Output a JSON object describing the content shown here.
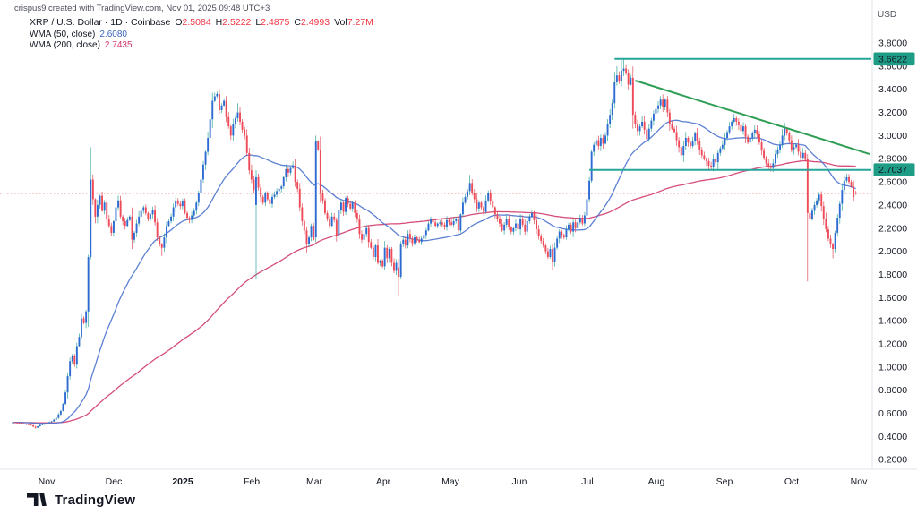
{
  "attribution": "crispus9 created with TradingView.com, Nov 01, 2025 09:48 UTC+3",
  "legend": {
    "symbol_title": "XRP / U.S. Dollar · 1D · Coinbase",
    "ohlc": [
      {
        "label": "O",
        "value": "2.5084"
      },
      {
        "label": "H",
        "value": "2.5222"
      },
      {
        "label": "L",
        "value": "2.4875"
      },
      {
        "label": "C",
        "value": "2.4993"
      },
      {
        "label": "Vol",
        "value": "7.27M"
      }
    ],
    "wma50_label": "WMA (50, close)",
    "wma50_value": "2.6080",
    "wma200_label": "WMA (200, close)",
    "wma200_value": "2.7435"
  },
  "price_scale": {
    "currency_label": "USD"
  },
  "footer": {
    "brand": "TradingView"
  },
  "colors": {
    "up_body": "#2d6bd2",
    "up_wick": "#2fa599",
    "down_body": "#ef4a57",
    "down_wick": "#de4656",
    "wma50": "#4a72cf",
    "wma200": "#d03a6a",
    "level_line": "#26a69a",
    "trend_line": "#2e9e55",
    "badge_bg": "#1f9c86",
    "badge_text": "#ffffff",
    "last_price": "#e05252",
    "ohlc_value": "#f23645",
    "text_dark": "#131722",
    "text_gray": "#50535e",
    "axis_border": "#e0e3eb"
  },
  "chart_data": {
    "type": "candlestick",
    "symbol": "XRP/USD",
    "interval": "1D",
    "exchange": "Coinbase",
    "title": "XRP / U.S. Dollar · 1D · Coinbase",
    "ylim": [
      0.2,
      3.8
    ],
    "tick_step": 0.2,
    "x_months": [
      "Nov",
      "Dec",
      "2025",
      "Feb",
      "Mar",
      "Apr",
      "May",
      "Jun",
      "Jul",
      "Aug",
      "Sep",
      "Oct",
      "Nov"
    ],
    "bold_month": "2025",
    "start_date": "2024-10-29",
    "indicators": [
      {
        "name": "WMA 50",
        "period": 50,
        "last": 2.608
      },
      {
        "name": "WMA 200",
        "period": 200,
        "last": 2.7435
      }
    ],
    "drawings": {
      "horizontal_levels": [
        {
          "price": 3.6622,
          "label": "3.6622",
          "from_day": 262
        },
        {
          "price": 2.7037,
          "label": "2.7037",
          "from_day": 251
        }
      ],
      "trendline": {
        "from_day": 271,
        "from_price": 3.475,
        "to_day": 373,
        "to_price": 2.84
      },
      "last_price": 2.4993
    },
    "anchors": [
      [
        0,
        0.52
      ],
      [
        3,
        0.515
      ],
      [
        6,
        0.505
      ],
      [
        8,
        0.495
      ],
      [
        10,
        0.475
      ],
      [
        12,
        0.5
      ],
      [
        14,
        0.51
      ],
      [
        17,
        0.53
      ],
      [
        19,
        0.56
      ],
      [
        21,
        0.62
      ],
      [
        22,
        0.68
      ],
      [
        23,
        0.78
      ],
      [
        24,
        0.92
      ],
      [
        25,
        1.05
      ],
      [
        26,
        1.1
      ],
      [
        27,
        1.02
      ],
      [
        28,
        1.18
      ],
      [
        29,
        1.26
      ],
      [
        30,
        1.42
      ],
      [
        31,
        1.38
      ],
      [
        32,
        1.48
      ],
      [
        33,
        1.95
      ],
      [
        34,
        2.62
      ],
      [
        35,
        2.45
      ],
      [
        36,
        2.3
      ],
      [
        37,
        2.4
      ],
      [
        38,
        2.48
      ],
      [
        39,
        2.35
      ],
      [
        40,
        2.42
      ],
      [
        41,
        2.28
      ],
      [
        42,
        2.22
      ],
      [
        43,
        2.16
      ],
      [
        44,
        2.26
      ],
      [
        45,
        2.38
      ],
      [
        46,
        2.44
      ],
      [
        47,
        2.3
      ],
      [
        48,
        2.26
      ],
      [
        49,
        2.22
      ],
      [
        50,
        2.27
      ],
      [
        51,
        2.3
      ],
      [
        52,
        2.1
      ],
      [
        53,
        2.16
      ],
      [
        54,
        2.24
      ],
      [
        55,
        2.3
      ],
      [
        56,
        2.35
      ],
      [
        57,
        2.38
      ],
      [
        58,
        2.33
      ],
      [
        59,
        2.28
      ],
      [
        60,
        2.32
      ],
      [
        61,
        2.36
      ],
      [
        62,
        2.25
      ],
      [
        63,
        2.12
      ],
      [
        64,
        2.06
      ],
      [
        65,
        2.03
      ],
      [
        66,
        2.12
      ],
      [
        67,
        2.22
      ],
      [
        68,
        2.26
      ],
      [
        69,
        2.3
      ],
      [
        70,
        2.38
      ],
      [
        71,
        2.44
      ],
      [
        72,
        2.41
      ],
      [
        73,
        2.39
      ],
      [
        74,
        2.43
      ],
      [
        75,
        2.33
      ],
      [
        76,
        2.29
      ],
      [
        77,
        2.27
      ],
      [
        78,
        2.31
      ],
      [
        79,
        2.35
      ],
      [
        80,
        2.42
      ],
      [
        81,
        2.5
      ],
      [
        82,
        2.62
      ],
      [
        83,
        2.75
      ],
      [
        84,
        2.86
      ],
      [
        85,
        2.98
      ],
      [
        86,
        3.14
      ],
      [
        87,
        3.3
      ],
      [
        88,
        3.34
      ],
      [
        89,
        3.36
      ],
      [
        90,
        3.22
      ],
      [
        91,
        3.26
      ],
      [
        92,
        3.3
      ],
      [
        93,
        3.16
      ],
      [
        94,
        3.08
      ],
      [
        95,
        3.0
      ],
      [
        96,
        3.1
      ],
      [
        97,
        3.15
      ],
      [
        98,
        3.2
      ],
      [
        99,
        3.12
      ],
      [
        100,
        3.05
      ],
      [
        101,
        3.0
      ],
      [
        102,
        2.85
      ],
      [
        103,
        2.7
      ],
      [
        104,
        2.62
      ],
      [
        105,
        2.53
      ],
      [
        106,
        2.64
      ],
      [
        107,
        2.55
      ],
      [
        108,
        2.47
      ],
      [
        109,
        2.42
      ],
      [
        110,
        2.5
      ],
      [
        111,
        2.45
      ],
      [
        112,
        2.41
      ],
      [
        113,
        2.47
      ],
      [
        114,
        2.49
      ],
      [
        115,
        2.52
      ],
      [
        116,
        2.54
      ],
      [
        117,
        2.56
      ],
      [
        118,
        2.64
      ],
      [
        119,
        2.71
      ],
      [
        120,
        2.68
      ],
      [
        121,
        2.72
      ],
      [
        122,
        2.74
      ],
      [
        123,
        2.6
      ],
      [
        124,
        2.54
      ],
      [
        125,
        2.38
      ],
      [
        126,
        2.26
      ],
      [
        127,
        2.18
      ],
      [
        128,
        2.06
      ],
      [
        129,
        2.12
      ],
      [
        130,
        2.22
      ],
      [
        131,
        2.1
      ],
      [
        132,
        2.95
      ],
      [
        133,
        2.88
      ],
      [
        134,
        2.5
      ],
      [
        135,
        2.44
      ],
      [
        136,
        2.33
      ],
      [
        137,
        2.28
      ],
      [
        138,
        2.22
      ],
      [
        139,
        2.3
      ],
      [
        140,
        2.27
      ],
      [
        141,
        2.14
      ],
      [
        142,
        2.36
      ],
      [
        143,
        2.42
      ],
      [
        144,
        2.34
      ],
      [
        145,
        2.46
      ],
      [
        146,
        2.41
      ],
      [
        147,
        2.37
      ],
      [
        148,
        2.42
      ],
      [
        149,
        2.33
      ],
      [
        150,
        2.28
      ],
      [
        151,
        2.15
      ],
      [
        152,
        2.1
      ],
      [
        153,
        2.15
      ],
      [
        154,
        2.2
      ],
      [
        155,
        2.08
      ],
      [
        156,
        2.03
      ],
      [
        157,
        1.95
      ],
      [
        158,
        2.05
      ],
      [
        159,
        1.9
      ],
      [
        160,
        1.92
      ],
      [
        161,
        1.87
      ],
      [
        162,
        2.03
      ],
      [
        163,
        1.94
      ],
      [
        164,
        2.02
      ],
      [
        165,
        1.9
      ],
      [
        166,
        1.83
      ],
      [
        167,
        1.9
      ],
      [
        168,
        1.78
      ],
      [
        169,
        2.06
      ],
      [
        170,
        2.1
      ],
      [
        171,
        2.05
      ],
      [
        172,
        2.15
      ],
      [
        173,
        2.11
      ],
      [
        174,
        2.07
      ],
      [
        175,
        2.12
      ],
      [
        176,
        2.1
      ],
      [
        177,
        2.08
      ],
      [
        178,
        2.11
      ],
      [
        179,
        2.14
      ],
      [
        180,
        2.18
      ],
      [
        181,
        2.24
      ],
      [
        182,
        2.28
      ],
      [
        183,
        2.25
      ],
      [
        184,
        2.22
      ],
      [
        185,
        2.24
      ],
      [
        186,
        2.25
      ],
      [
        187,
        2.23
      ],
      [
        188,
        2.21
      ],
      [
        189,
        2.27
      ],
      [
        190,
        2.25
      ],
      [
        191,
        2.23
      ],
      [
        192,
        2.26
      ],
      [
        193,
        2.28
      ],
      [
        194,
        2.18
      ],
      [
        195,
        2.32
      ],
      [
        196,
        2.42
      ],
      [
        197,
        2.47
      ],
      [
        198,
        2.52
      ],
      [
        199,
        2.59
      ],
      [
        200,
        2.5
      ],
      [
        201,
        2.45
      ],
      [
        202,
        2.37
      ],
      [
        203,
        2.42
      ],
      [
        204,
        2.38
      ],
      [
        205,
        2.34
      ],
      [
        206,
        2.44
      ],
      [
        207,
        2.5
      ],
      [
        208,
        2.43
      ],
      [
        209,
        2.38
      ],
      [
        210,
        2.32
      ],
      [
        211,
        2.28
      ],
      [
        212,
        2.24
      ],
      [
        213,
        2.18
      ],
      [
        214,
        2.23
      ],
      [
        215,
        2.28
      ],
      [
        216,
        2.21
      ],
      [
        217,
        2.17
      ],
      [
        218,
        2.2
      ],
      [
        219,
        2.24
      ],
      [
        220,
        2.19
      ],
      [
        221,
        2.28
      ],
      [
        222,
        2.23
      ],
      [
        223,
        2.17
      ],
      [
        224,
        2.26
      ],
      [
        225,
        2.3
      ],
      [
        226,
        2.33
      ],
      [
        227,
        2.27
      ],
      [
        228,
        2.19
      ],
      [
        229,
        2.13
      ],
      [
        230,
        2.09
      ],
      [
        231,
        2.05
      ],
      [
        232,
        2.0
      ],
      [
        233,
        1.95
      ],
      [
        234,
        2.02
      ],
      [
        235,
        1.91
      ],
      [
        236,
        2.03
      ],
      [
        237,
        2.11
      ],
      [
        238,
        2.17
      ],
      [
        239,
        2.14
      ],
      [
        240,
        2.12
      ],
      [
        241,
        2.19
      ],
      [
        242,
        2.23
      ],
      [
        243,
        2.17
      ],
      [
        244,
        2.25
      ],
      [
        245,
        2.2
      ],
      [
        246,
        2.25
      ],
      [
        247,
        2.29
      ],
      [
        248,
        2.24
      ],
      [
        249,
        2.31
      ],
      [
        250,
        2.45
      ],
      [
        251,
        2.61
      ],
      [
        252,
        2.86
      ],
      [
        253,
        2.92
      ],
      [
        254,
        2.96
      ],
      [
        255,
        2.91
      ],
      [
        256,
        2.98
      ],
      [
        257,
        2.93
      ],
      [
        258,
        3.0
      ],
      [
        259,
        3.1
      ],
      [
        260,
        3.18
      ],
      [
        261,
        3.28
      ],
      [
        262,
        3.46
      ],
      [
        263,
        3.52
      ],
      [
        264,
        3.47
      ],
      [
        265,
        3.56
      ],
      [
        266,
        3.58
      ],
      [
        267,
        3.54
      ],
      [
        268,
        3.44
      ],
      [
        269,
        3.5
      ],
      [
        270,
        3.18
      ],
      [
        271,
        3.1
      ],
      [
        272,
        3.04
      ],
      [
        273,
        3.08
      ],
      [
        274,
        3.12
      ],
      [
        275,
        3.05
      ],
      [
        276,
        2.97
      ],
      [
        277,
        3.06
      ],
      [
        278,
        3.13
      ],
      [
        279,
        3.19
      ],
      [
        280,
        3.23
      ],
      [
        281,
        3.26
      ],
      [
        282,
        3.31
      ],
      [
        283,
        3.25
      ],
      [
        284,
        3.31
      ],
      [
        285,
        3.2
      ],
      [
        286,
        3.1
      ],
      [
        287,
        3.06
      ],
      [
        288,
        3.03
      ],
      [
        289,
        2.96
      ],
      [
        290,
        2.9
      ],
      [
        291,
        2.83
      ],
      [
        292,
        2.91
      ],
      [
        293,
        2.98
      ],
      [
        294,
        2.94
      ],
      [
        295,
        2.91
      ],
      [
        296,
        2.95
      ],
      [
        297,
        3.02
      ],
      [
        298,
        2.95
      ],
      [
        299,
        2.88
      ],
      [
        300,
        2.83
      ],
      [
        301,
        2.8
      ],
      [
        302,
        2.78
      ],
      [
        303,
        2.74
      ],
      [
        304,
        2.73
      ],
      [
        305,
        2.8
      ],
      [
        306,
        2.77
      ],
      [
        307,
        2.85
      ],
      [
        308,
        2.89
      ],
      [
        309,
        2.92
      ],
      [
        310,
        2.98
      ],
      [
        311,
        3.03
      ],
      [
        312,
        3.08
      ],
      [
        313,
        3.12
      ],
      [
        314,
        3.15
      ],
      [
        315,
        3.12
      ],
      [
        316,
        3.09
      ],
      [
        317,
        3.04
      ],
      [
        318,
        3.08
      ],
      [
        319,
        2.99
      ],
      [
        320,
        2.94
      ],
      [
        321,
        2.98
      ],
      [
        322,
        3.02
      ],
      [
        323,
        3.05
      ],
      [
        324,
        3.01
      ],
      [
        325,
        2.94
      ],
      [
        326,
        2.87
      ],
      [
        327,
        2.81
      ],
      [
        328,
        2.76
      ],
      [
        329,
        2.73
      ],
      [
        330,
        2.72
      ],
      [
        331,
        2.76
      ],
      [
        332,
        2.84
      ],
      [
        333,
        2.88
      ],
      [
        334,
        2.92
      ],
      [
        335,
        3.0
      ],
      [
        336,
        3.06
      ],
      [
        337,
        3.02
      ],
      [
        338,
        2.96
      ],
      [
        339,
        2.88
      ],
      [
        340,
        2.9
      ],
      [
        341,
        2.92
      ],
      [
        342,
        2.86
      ],
      [
        343,
        2.81
      ],
      [
        344,
        2.85
      ],
      [
        345,
        2.8
      ],
      [
        346,
        2.33
      ],
      [
        347,
        2.28
      ],
      [
        348,
        2.35
      ],
      [
        349,
        2.4
      ],
      [
        350,
        2.44
      ],
      [
        351,
        2.49
      ],
      [
        352,
        2.39
      ],
      [
        353,
        2.28
      ],
      [
        354,
        2.19
      ],
      [
        355,
        2.11
      ],
      [
        356,
        2.06
      ],
      [
        357,
        2.02
      ],
      [
        358,
        2.16
      ],
      [
        359,
        2.29
      ],
      [
        360,
        2.41
      ],
      [
        361,
        2.53
      ],
      [
        362,
        2.61
      ],
      [
        363,
        2.64
      ],
      [
        364,
        2.6
      ],
      [
        365,
        2.56
      ],
      [
        366,
        2.47
      ],
      [
        367,
        2.5
      ]
    ],
    "overrides": {
      "34": {
        "h": 2.9,
        "l": 1.93
      },
      "45": {
        "h": 2.87
      },
      "52": {
        "l": 2.02
      },
      "65": {
        "l": 1.96
      },
      "98": {
        "h": 3.28
      },
      "106": {
        "o": 2.4,
        "h": 2.7,
        "l": 1.76
      },
      "128": {
        "l": 1.99
      },
      "132": {
        "o": 2.12,
        "h": 3.0,
        "l": 2.08
      },
      "134": {
        "l": 2.42
      },
      "168": {
        "o": 1.86,
        "l": 1.61
      },
      "199": {
        "h": 2.66
      },
      "235": {
        "l": 1.84
      },
      "263": {
        "h": 3.6
      },
      "265": {
        "h": 3.65
      },
      "266": {
        "h": 3.663
      },
      "270": {
        "l": 3.06
      },
      "330": {
        "l": 2.69
      },
      "336": {
        "h": 3.11
      },
      "346": {
        "h": 2.84,
        "l": 1.74
      },
      "357": {
        "l": 1.94
      },
      "363": {
        "h": 2.67
      },
      "367": {
        "o": 2.5084,
        "h": 2.5222,
        "l": 2.4875,
        "c": 2.4993
      }
    }
  }
}
